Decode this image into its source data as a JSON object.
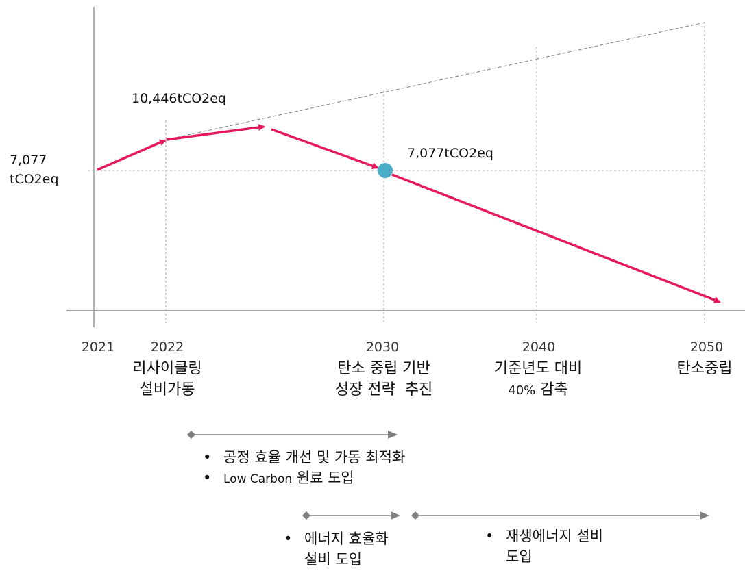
{
  "labels": {
    "base_value_line1": "7,077",
    "base_value_line2": "tCO2eq",
    "peak_value": "10,446tCO2eq",
    "target_2030_value": "7,077tCO2eq"
  },
  "years": [
    "2021",
    "2022",
    "2030",
    "2040",
    "2050"
  ],
  "milestones": {
    "y2022": {
      "line1": "리사이클링",
      "line2": "설비가동"
    },
    "y2030": {
      "line1": "탄소 중립 기반",
      "line2": "성장 전략  추진"
    },
    "y2040": {
      "line1": "기준년도 대비",
      "line2_small": "40%",
      "line2": " 감축"
    },
    "y2050": {
      "line1": "탄소중립"
    }
  },
  "phases": {
    "process": {
      "bullet1": "공정 효율 개선 및 가동 최적화",
      "bullet2_small": "Low Carbon",
      "bullet2": " 원료 도입"
    },
    "energy": {
      "line1": "에너지 효율화",
      "line2": "설비 도입"
    },
    "renewable": {
      "line1": "재생에너지 설비",
      "line2": "도입"
    }
  },
  "colors": {
    "emission_path": "#e6195e",
    "target_marker": "#4aacc5",
    "phase_arrow": "#7f7f7f",
    "axis": "#808080",
    "gridline": "#a6a6a6"
  },
  "icons": {
    "bullet": "•"
  }
}
